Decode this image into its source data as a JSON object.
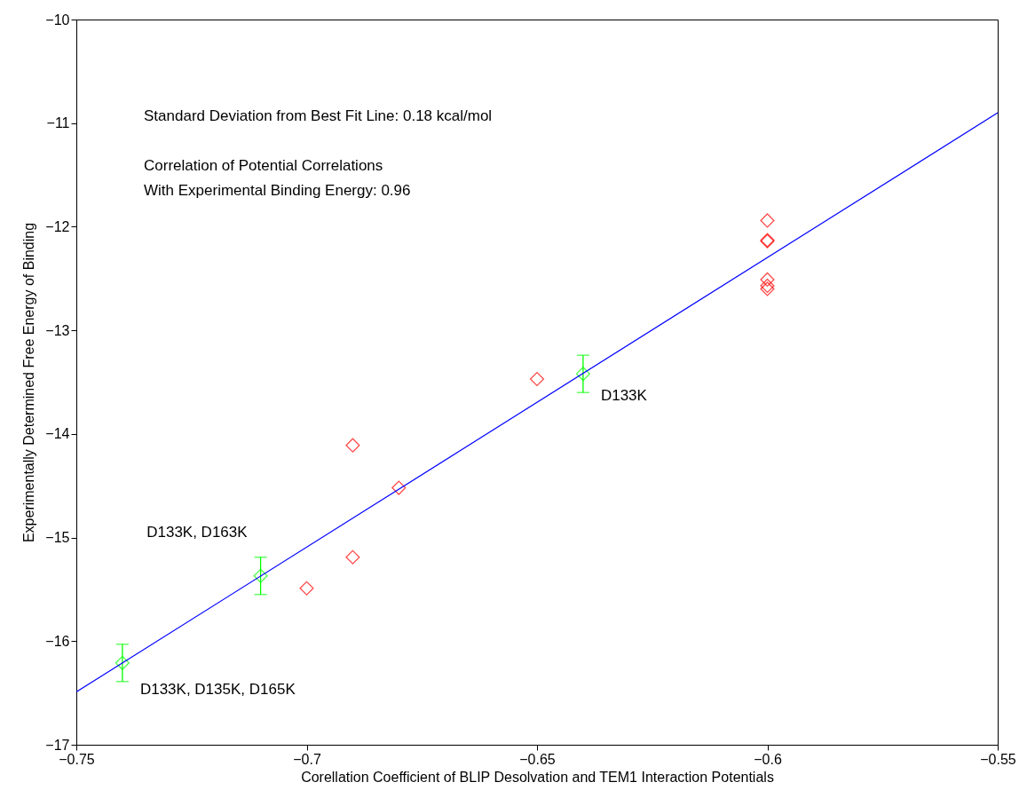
{
  "chart_data": {
    "type": "scatter",
    "xlabel": "Corellation Coefficient of BLIP Desolvation and TEM1 Interaction Potentials",
    "ylabel": "Experimentally Determined Free Energy of Binding",
    "xlim": [
      -0.75,
      -0.55
    ],
    "ylim": [
      -17,
      -10
    ],
    "xticks": [
      {
        "value": -0.75,
        "label": "−0.75"
      },
      {
        "value": -0.7,
        "label": "−0.7"
      },
      {
        "value": -0.65,
        "label": "−0.65"
      },
      {
        "value": -0.6,
        "label": "−0.6"
      },
      {
        "value": -0.55,
        "label": "−0.55"
      }
    ],
    "yticks": [
      {
        "value": -17,
        "label": "−17"
      },
      {
        "value": -16,
        "label": "−16"
      },
      {
        "value": -15,
        "label": "−15"
      },
      {
        "value": -14,
        "label": "−14"
      },
      {
        "value": -13,
        "label": "−13"
      },
      {
        "value": -12,
        "label": "−12"
      },
      {
        "value": -11,
        "label": "−11"
      },
      {
        "value": -10,
        "label": "−10"
      }
    ],
    "grid": false,
    "marker": "diamond",
    "series": [
      {
        "color": "#ff0000",
        "x": [
          -0.6,
          -0.6,
          -0.6,
          -0.6,
          -0.6,
          -0.6,
          -0.65,
          -0.69,
          -0.68,
          -0.69,
          -0.7
        ],
        "values": [
          -11.94,
          -12.13,
          -12.14,
          -12.51,
          -12.57,
          -12.6,
          -13.47,
          -14.11,
          -14.52,
          -15.19,
          -15.49
        ]
      },
      {
        "color": "#00ff00",
        "x": [
          -0.64,
          -0.71,
          -0.74
        ],
        "values": [
          -13.42,
          -15.37,
          -16.21
        ],
        "errors": [
          0.18,
          0.18,
          0.18
        ]
      },
      {
        "type": "line",
        "color": "#0000ff",
        "marker": "none",
        "x": [
          -0.75,
          -0.55
        ],
        "values": [
          -16.49,
          -10.9
        ]
      }
    ],
    "annotations": [
      "Standard Deviation from Best Fit Line: 0.18 kcal/mol",
      "Correlation of Potential Correlations",
      "With Experimental Binding Energy:     0.96",
      {
        "text": "D133K",
        "x": -0.64,
        "y": -13.42
      },
      {
        "text": "D133K, D163K",
        "x": -0.71,
        "y": -15.37
      },
      {
        "text": "D133K, D135K, D165K",
        "x": -0.74,
        "y": -16.21
      }
    ]
  }
}
